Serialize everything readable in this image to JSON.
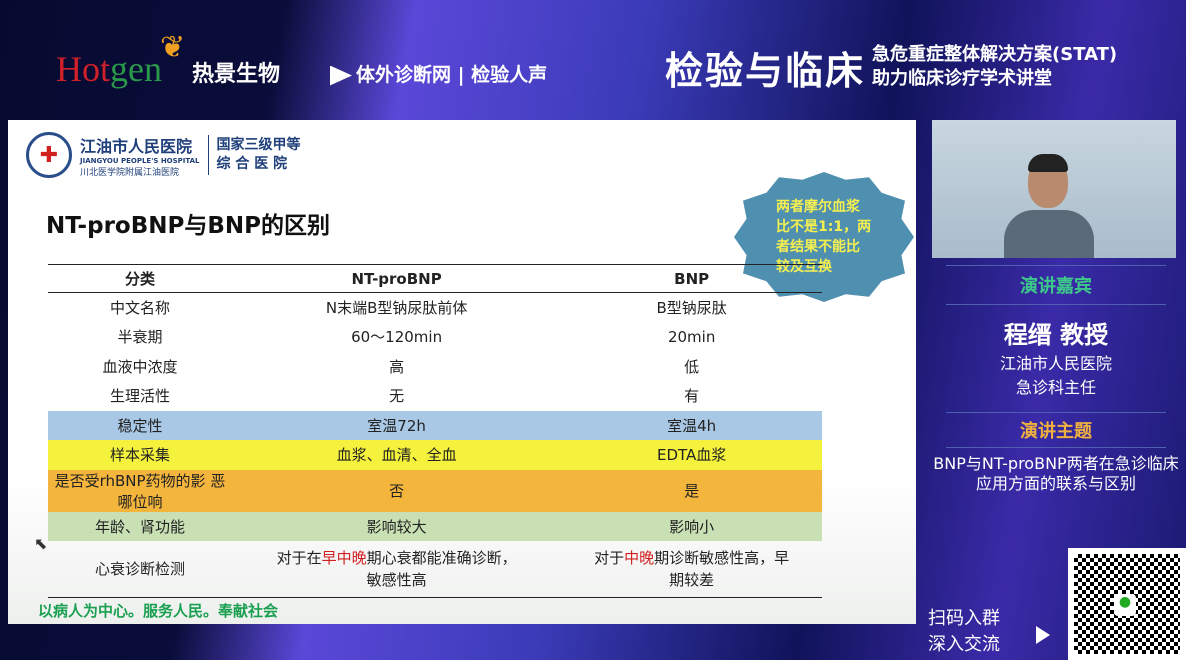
{
  "banner": {
    "brand": "Hotgen",
    "brand_cn": "热景生物",
    "partners": "体外诊断网 | 检验人声",
    "event_title": "检验与临床",
    "event_sub1": "急危重症整体解决方案(STAT)",
    "event_sub2": "助力临床诊疗学术讲堂"
  },
  "slide": {
    "hospital_name": "江油市人民医院",
    "hospital_en": "JIANGYOU PEOPLE'S HOSPITAL",
    "hospital_affil": "川北医学院附属江油医院",
    "hospital_level1": "国家三级甲等",
    "hospital_level2": "综 合 医 院",
    "title": "NT-proBNP与BNP的区别",
    "callout": "两者摩尔血浆比不是1:1，两者结果不能比较及互换",
    "table": {
      "headers": [
        "分类",
        "NT-proBNP",
        "BNP"
      ],
      "rows": [
        [
          "中文名称",
          "N末端B型钠尿肽前体",
          "B型钠尿肽"
        ],
        [
          "半衰期",
          "60～120min",
          "20min"
        ],
        [
          "血液中浓度",
          "高",
          "低"
        ],
        [
          "生理活性",
          "无",
          "有"
        ],
        [
          "稳定性",
          "室温72h",
          "室温4h"
        ],
        [
          "样本采集",
          "血浆、血清、全血",
          "EDTA血浆"
        ],
        [
          "是否受rhBNP药物的影 恶哪位响",
          "否",
          "是"
        ],
        [
          "年龄、肾功能",
          "影响较大",
          "影响小"
        ]
      ],
      "last": {
        "c1": "心衰诊断检测",
        "c2a": "对于在",
        "c2b": "早中晚",
        "c2c": "期心衰都能准确诊断，敏感性高",
        "c3a": "对于",
        "c3b": "中晚",
        "c3c": "期诊断敏感性高，早期较差"
      },
      "row_colors": {
        "4": "#a9c8e6",
        "5": "#f4f23c",
        "6": "#f4b53c",
        "7": "#c8e0b4"
      }
    },
    "motto": "以病人为中心。服务人民。奉献社会"
  },
  "speaker": {
    "section_label": "演讲嘉宾",
    "name": "程缙 教授",
    "hospital": "江油市人民医院",
    "role": "急诊科主任",
    "topic_label": "演讲主题",
    "topic": "BNP与NT-proBNP两者在急诊临床应用方面的联系与区别"
  },
  "qr": {
    "line1": "扫码入群",
    "line2": "深入交流"
  }
}
